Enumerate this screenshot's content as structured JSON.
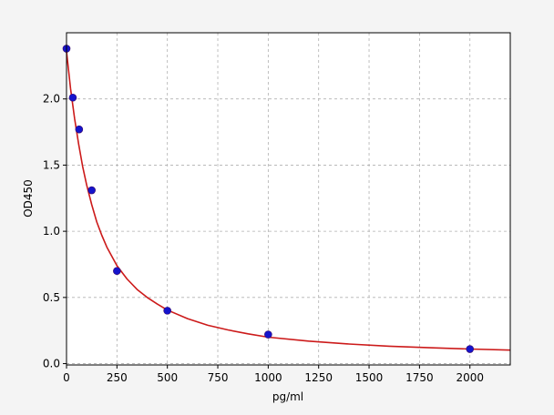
{
  "chart_data": {
    "type": "scatter",
    "title": "",
    "xlabel": "pg/ml",
    "ylabel": "OD450",
    "xlim": [
      0,
      2200
    ],
    "ylim": [
      -0.01,
      2.5
    ],
    "xticks": [
      0,
      250,
      500,
      750,
      1000,
      1250,
      1500,
      1750,
      2000
    ],
    "yticks": [
      0.0,
      0.5,
      1.0,
      1.5,
      2.0
    ],
    "ytick_labels": [
      "0.0",
      "0.5",
      "1.0",
      "1.5",
      "2.0"
    ],
    "grid": true,
    "points": {
      "x": [
        0,
        31.25,
        62.5,
        125,
        250,
        500,
        1000,
        2000
      ],
      "y": [
        2.38,
        2.01,
        1.77,
        1.31,
        0.7,
        0.4,
        0.22,
        0.11
      ],
      "color": "#1414cc"
    },
    "fit_curve": {
      "x": [
        0,
        20,
        40,
        60,
        80,
        100,
        125,
        150,
        175,
        200,
        250,
        300,
        350,
        400,
        450,
        500,
        600,
        700,
        800,
        900,
        1000,
        1200,
        1400,
        1600,
        1800,
        2000,
        2200
      ],
      "y": [
        2.36,
        2.08,
        1.85,
        1.66,
        1.49,
        1.35,
        1.2,
        1.07,
        0.97,
        0.88,
        0.74,
        0.64,
        0.56,
        0.5,
        0.45,
        0.405,
        0.34,
        0.29,
        0.255,
        0.225,
        0.2,
        0.17,
        0.148,
        0.132,
        0.12,
        0.11,
        0.102
      ],
      "color": "#cc1a1a"
    }
  }
}
